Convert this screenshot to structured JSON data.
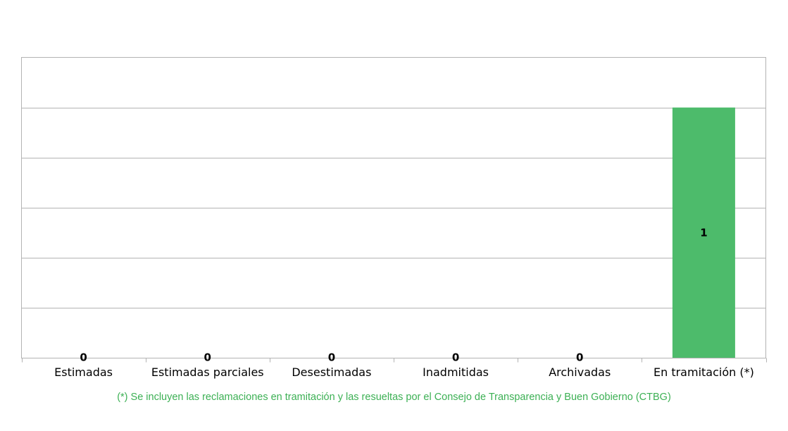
{
  "chart_data": {
    "type": "bar",
    "categories": [
      "Estimadas",
      "Estimadas parciales",
      "Desestimadas",
      "Inadmitidas",
      "Archivadas",
      "En tramitación (*)"
    ],
    "values": [
      0,
      0,
      0,
      0,
      0,
      1
    ],
    "data_labels": [
      "0",
      "0",
      "0",
      "0",
      "0",
      "1"
    ],
    "ylim": [
      0,
      1.2
    ],
    "grid": true,
    "bar_color": "#4dbb6b",
    "footnote": "(*) Se incluyen las reclamaciones en tramitación y las resueltas por el Consejo de Transparencia y Buen Gobierno (CTBG)"
  },
  "colors": {
    "footnote": "#3cb054",
    "gridline": "#b3b3b3"
  }
}
